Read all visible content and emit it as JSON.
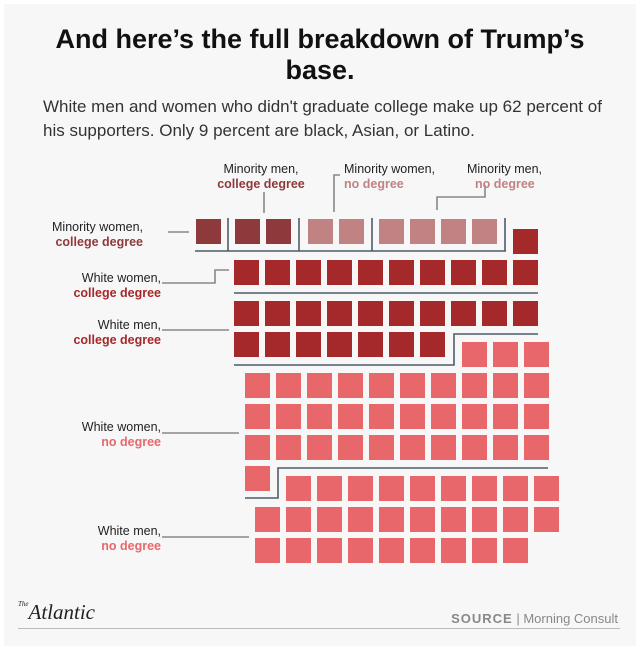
{
  "header": {
    "title": "And here’s the full breakdown of Trump’s base.",
    "subtitle": "White men and women who didn't graduate college make up 62 percent of his supporters. Only 9 percent are black, Asian, or Latino."
  },
  "chart_data": {
    "type": "waffle",
    "unit": "percent of supporters (1 square = 1%)",
    "categories": [
      {
        "group": "Minority women,",
        "education": "college degree",
        "value": 1,
        "color": "#8e3a3c"
      },
      {
        "group": "Minority men,",
        "education": "college degree",
        "value": 2,
        "color": "#8e3a3c"
      },
      {
        "group": "Minority women,",
        "education": "no degree",
        "value": 2,
        "color": "#c08283"
      },
      {
        "group": "Minority men,",
        "education": "no degree",
        "value": 4,
        "color": "#c08283"
      },
      {
        "group": "White women,",
        "education": "college degree",
        "value": 11,
        "color": "#a5282b"
      },
      {
        "group": "White men,",
        "education": "college degree",
        "value": 17,
        "color": "#a5282b"
      },
      {
        "group": "White women,",
        "education": "no degree",
        "value": 34,
        "color": "#e8676a"
      },
      {
        "group": "White men,",
        "education": "no degree",
        "value": 28,
        "color": "#e8676a"
      }
    ]
  },
  "footer": {
    "logo_small": "The",
    "logo": "Atlantic",
    "source_label": "SOURCE",
    "source_sep": " | ",
    "source": "Morning Consult"
  }
}
